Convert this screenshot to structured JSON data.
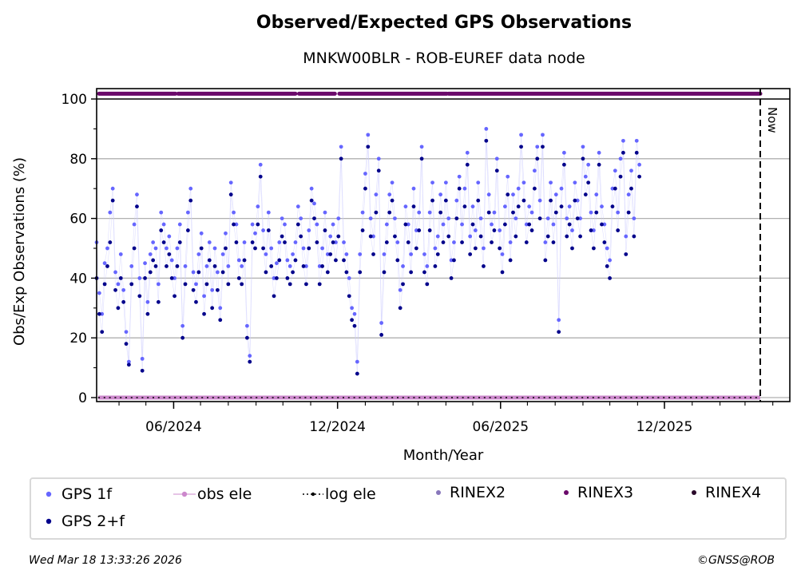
{
  "header": {
    "title": "Observed/Expected GPS Observations",
    "subtitle": "MNKW00BLR - ROB-EUREF data node"
  },
  "footer": {
    "timestamp": "Wed Mar 18 13:33:26 2026",
    "copyright": "©GNSS@ROB"
  },
  "colors": {
    "gps_1f": "#6666ff",
    "gps_2f": "#00008b",
    "obs_ele": "#cc88cc",
    "log_ele": "#000000",
    "rinex2": "#8877bb",
    "rinex3": "#6a0a6a",
    "rinex4": "#2a0a2a",
    "grid": "#b0b0b0"
  },
  "chart_data": {
    "type": "scatter",
    "title": "Observed/Expected GPS Observations",
    "subtitle": "MNKW00BLR - ROB-EUREF data node",
    "xlabel": "Month/Year",
    "ylabel": "Obs/Exp Observations (%)",
    "xlim": [
      "2024-03-07",
      "2026-04-20"
    ],
    "ylim": [
      -1,
      103
    ],
    "x_major_ticks": [
      {
        "date": "2024-06-01",
        "label": "06/2024"
      },
      {
        "date": "2024-12-01",
        "label": "12/2024"
      },
      {
        "date": "2025-06-01",
        "label": "06/2025"
      },
      {
        "date": "2025-12-01",
        "label": "12/2025"
      }
    ],
    "y_major_ticks": [
      0,
      20,
      40,
      60,
      80,
      100
    ],
    "y_minor_ticks": [
      10,
      30,
      50,
      70,
      90
    ],
    "grid": "horizontal",
    "now_marker": {
      "date": "2026-03-18",
      "label": "Now"
    },
    "legend": {
      "placement": "bottom",
      "entries": [
        {
          "label": "GPS 1f",
          "key": "gps_1f"
        },
        {
          "label": "obs ele",
          "key": "obs_ele"
        },
        {
          "label": "log ele",
          "key": "log_ele"
        },
        {
          "label": "RINEX2",
          "key": "rinex2"
        },
        {
          "label": "RINEX3",
          "key": "rinex3"
        },
        {
          "label": "RINEX4",
          "key": "rinex4"
        },
        {
          "label": "GPS 2+f",
          "key": "gps_2f"
        }
      ]
    },
    "rinex3_availability_y": 101.5,
    "rinex3_gaps": [
      [
        "2024-06-03",
        "2024-06-06"
      ],
      [
        "2024-10-15",
        "2024-10-19"
      ],
      [
        "2024-11-28",
        "2024-12-03"
      ],
      [
        "2025-04-02",
        "2025-04-04"
      ]
    ],
    "obs_ele_y": 0,
    "series_start": "2024-03-07",
    "series_step_days": 3,
    "series": [
      {
        "name": "GPS 1f",
        "values": [
          52,
          35,
          28,
          45,
          50,
          62,
          70,
          42,
          38,
          48,
          36,
          22,
          12,
          44,
          58,
          68,
          40,
          13,
          45,
          32,
          48,
          52,
          50,
          38,
          62,
          58,
          50,
          54,
          46,
          40,
          50,
          58,
          24,
          44,
          62,
          70,
          42,
          38,
          48,
          55,
          34,
          44,
          52,
          36,
          50,
          42,
          30,
          48,
          55,
          44,
          72,
          62,
          58,
          46,
          44,
          52,
          24,
          14,
          58,
          55,
          64,
          78,
          56,
          48,
          62,
          50,
          40,
          45,
          52,
          60,
          58,
          46,
          44,
          48,
          52,
          64,
          60,
          50,
          44,
          56,
          70,
          65,
          58,
          44,
          50,
          62,
          48,
          54,
          58,
          52,
          60,
          84,
          52,
          48,
          40,
          30,
          28,
          12,
          48,
          62,
          75,
          88,
          60,
          54,
          68,
          80,
          25,
          48,
          58,
          68,
          72,
          60,
          52,
          36,
          44,
          64,
          58,
          48,
          70,
          56,
          62,
          84,
          48,
          44,
          62,
          72,
          50,
          54,
          68,
          58,
          72,
          60,
          46,
          52,
          66,
          74,
          58,
          70,
          82,
          54,
          64,
          56,
          72,
          60,
          50,
          90,
          68,
          58,
          62,
          80,
          56,
          48,
          64,
          74,
          52,
          68,
          60,
          70,
          88,
          72,
          58,
          64,
          62,
          76,
          84,
          66,
          88,
          52,
          60,
          72,
          58,
          68,
          26,
          70,
          82,
          60,
          64,
          56,
          72,
          66,
          60,
          84,
          74,
          78,
          62,
          56,
          68,
          82,
          64,
          58,
          50,
          46,
          70,
          76,
          62,
          80,
          86,
          54,
          68,
          76,
          60,
          86,
          78
        ],
        "color_key": "gps_1f"
      },
      {
        "name": "GPS 2+f",
        "values": [
          40,
          28,
          22,
          38,
          44,
          52,
          66,
          36,
          30,
          40,
          32,
          18,
          11,
          38,
          50,
          64,
          34,
          9,
          40,
          28,
          42,
          46,
          44,
          32,
          56,
          52,
          44,
          48,
          40,
          34,
          44,
          52,
          20,
          38,
          56,
          66,
          36,
          32,
          42,
          50,
          28,
          38,
          46,
          30,
          44,
          36,
          26,
          42,
          50,
          38,
          68,
          58,
          52,
          40,
          38,
          46,
          20,
          12,
          52,
          50,
          58,
          74,
          50,
          42,
          56,
          44,
          34,
          40,
          46,
          54,
          52,
          40,
          38,
          42,
          46,
          58,
          54,
          44,
          38,
          50,
          66,
          60,
          52,
          38,
          44,
          56,
          42,
          48,
          52,
          46,
          54,
          80,
          46,
          42,
          34,
          26,
          24,
          8,
          42,
          56,
          70,
          84,
          54,
          48,
          62,
          76,
          21,
          42,
          52,
          62,
          66,
          54,
          46,
          30,
          38,
          58,
          52,
          42,
          64,
          50,
          56,
          80,
          42,
          38,
          56,
          66,
          44,
          48,
          62,
          52,
          66,
          54,
          40,
          46,
          60,
          70,
          52,
          64,
          78,
          48,
          58,
          50,
          66,
          54,
          44,
          86,
          62,
          52,
          56,
          76,
          50,
          42,
          58,
          68,
          46,
          62,
          54,
          64,
          84,
          66,
          52,
          58,
          56,
          70,
          80,
          60,
          84,
          46,
          54,
          66,
          52,
          62,
          22,
          64,
          78,
          54,
          58,
          50,
          66,
          60,
          54,
          80,
          68,
          72,
          56,
          50,
          62,
          78,
          58,
          52,
          44,
          40,
          64,
          70,
          56,
          74,
          82,
          48,
          62,
          70,
          54,
          82,
          74
        ],
        "color_key": "gps_2f"
      }
    ]
  }
}
